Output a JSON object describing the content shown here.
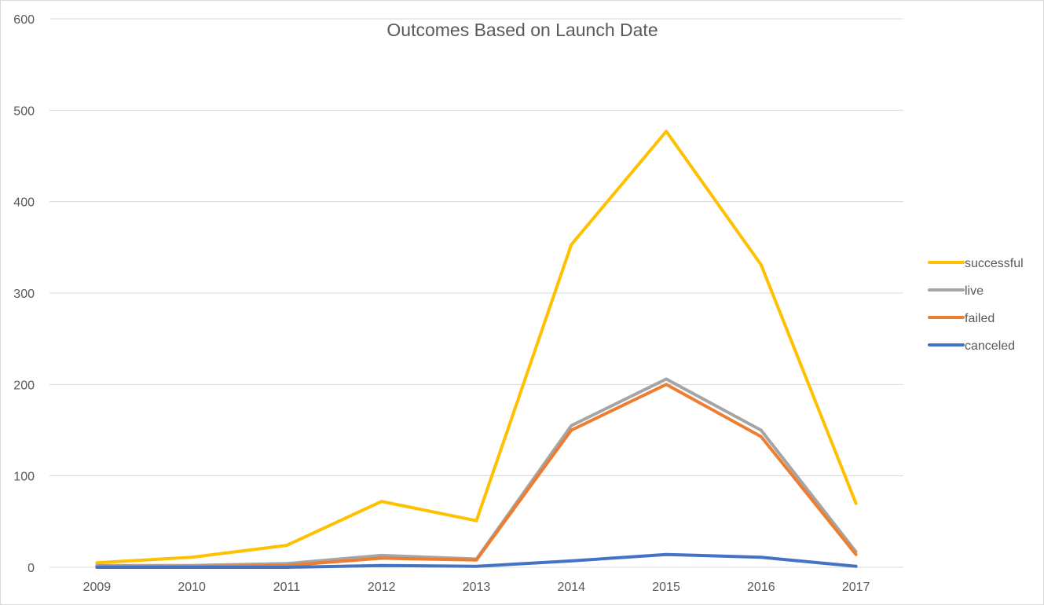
{
  "chart_data": {
    "type": "line",
    "title": "Outcomes Based on Launch Date",
    "xlabel": "",
    "ylabel": "",
    "categories": [
      "2009",
      "2010",
      "2011",
      "2012",
      "2013",
      "2014",
      "2015",
      "2016",
      "2017"
    ],
    "ylim": [
      0,
      600
    ],
    "yticks": [
      "0",
      "100",
      "200",
      "300",
      "400",
      "500",
      "600"
    ],
    "grid": true,
    "legend_position": "right",
    "series": [
      {
        "name": "successful",
        "color": "#FFC000",
        "values": [
          5,
          11,
          24,
          72,
          51,
          353,
          477,
          331,
          70
        ]
      },
      {
        "name": "live",
        "color": "#A5A5A5",
        "values": [
          2,
          2,
          4,
          13,
          9,
          155,
          206,
          150,
          17
        ]
      },
      {
        "name": "failed",
        "color": "#ED7D31",
        "values": [
          1,
          1,
          2,
          10,
          8,
          150,
          200,
          143,
          14
        ]
      },
      {
        "name": "canceled",
        "color": "#4472C4",
        "values": [
          0,
          0,
          0,
          2,
          1,
          7,
          14,
          11,
          1
        ]
      }
    ]
  }
}
